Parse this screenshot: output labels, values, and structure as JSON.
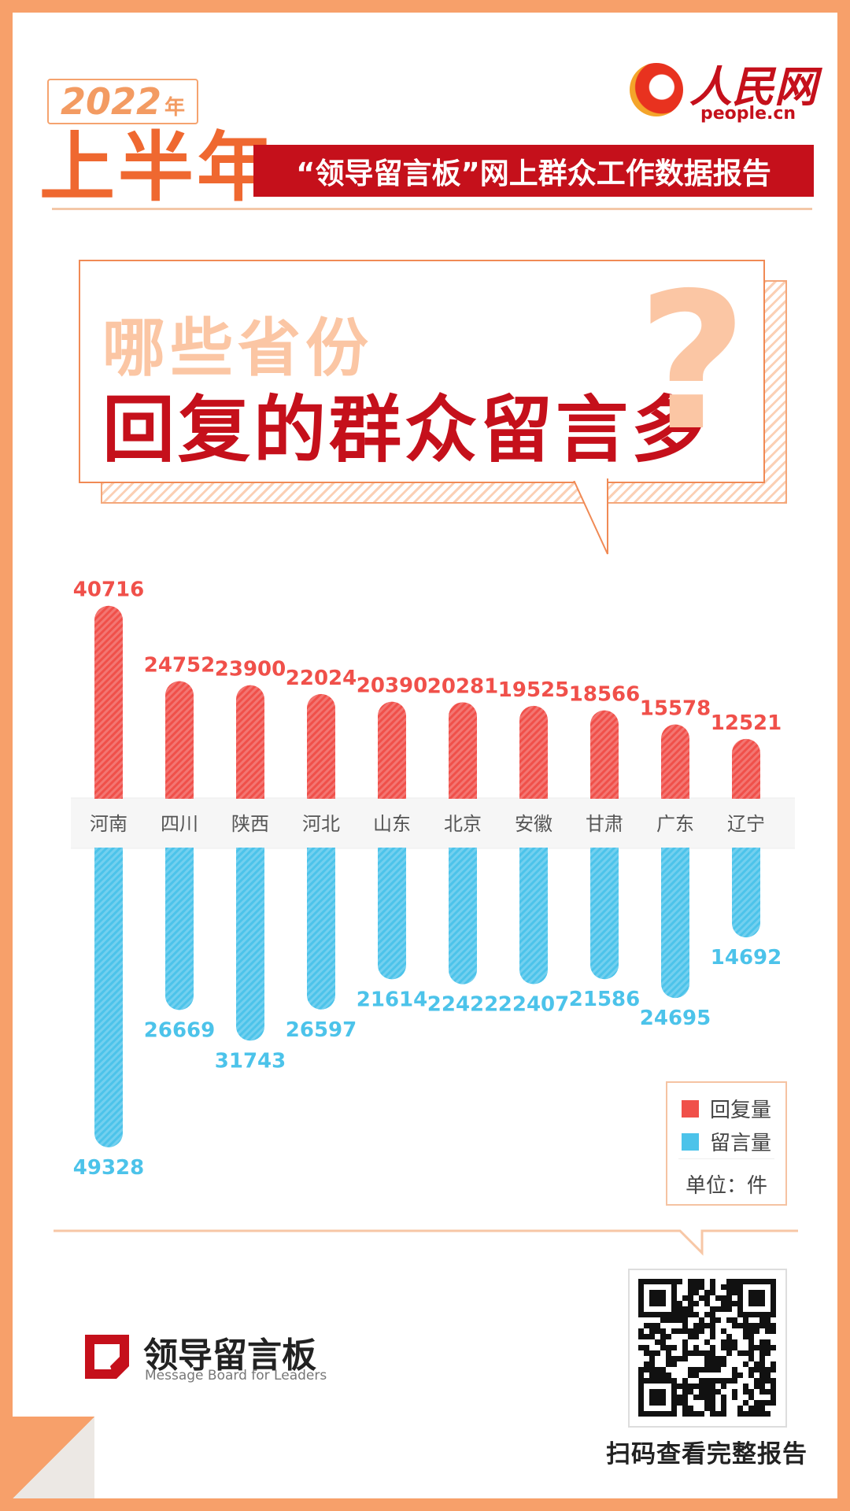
{
  "header": {
    "year": "2022",
    "year_unit": "年",
    "half_year": "上半年",
    "report_title": "“领导留言板”网上群众工作数据报告",
    "logo_name": "人民网",
    "logo_url": "people.cn"
  },
  "question": {
    "line1": "哪些省份",
    "line2": "回复的群众留言多",
    "mark": "?"
  },
  "colors": {
    "reply": "#f0504a",
    "message": "#4cc3ea",
    "accent": "#c5101b",
    "orange": "#f7a06a"
  },
  "chart_data": {
    "type": "bar",
    "categories": [
      "河南",
      "四川",
      "陕西",
      "河北",
      "山东",
      "北京",
      "安徽",
      "甘肃",
      "广东",
      "辽宁"
    ],
    "series": [
      {
        "name": "回复量",
        "values": [
          40716,
          24752,
          23900,
          22024,
          20390,
          20281,
          19525,
          18566,
          15578,
          12521
        ]
      },
      {
        "name": "留言量",
        "values": [
          49328,
          26669,
          31743,
          26597,
          21614,
          22422,
          22407,
          21586,
          24695,
          14692
        ]
      }
    ],
    "unit": "单位：件",
    "layout": "回复量 bars upward, 留言量 bars downward from a shared category band",
    "legend_position": "bottom-right"
  },
  "legend": {
    "reply_label": "回复量",
    "message_label": "留言量",
    "unit": "单位：件"
  },
  "footer": {
    "brand_name": "领导留言板",
    "brand_sub": "Message Board for Leaders",
    "qr_caption": "扫码查看完整报告"
  }
}
